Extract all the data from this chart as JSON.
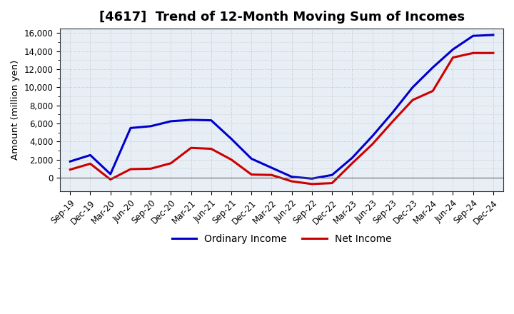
{
  "title": "[4617]  Trend of 12-Month Moving Sum of Incomes",
  "ylabel": "Amount (million yen)",
  "xlabels": [
    "Sep-19",
    "Dec-19",
    "Mar-20",
    "Jun-20",
    "Sep-20",
    "Dec-20",
    "Mar-21",
    "Jun-21",
    "Sep-21",
    "Dec-21",
    "Mar-22",
    "Jun-22",
    "Sep-22",
    "Dec-22",
    "Mar-23",
    "Jun-23",
    "Sep-23",
    "Dec-23",
    "Mar-24",
    "Jun-24",
    "Sep-24",
    "Dec-24"
  ],
  "ordinary_income": [
    1800,
    2500,
    400,
    5500,
    5700,
    6250,
    6400,
    6350,
    4300,
    2100,
    1100,
    100,
    -100,
    300,
    2200,
    4600,
    7200,
    10000,
    12200,
    14200,
    15700,
    15800
  ],
  "net_income": [
    900,
    1550,
    -200,
    950,
    1000,
    1600,
    3300,
    3200,
    2000,
    350,
    300,
    -400,
    -700,
    -600,
    1600,
    3700,
    6200,
    8600,
    9600,
    13300,
    13800,
    13800
  ],
  "ordinary_color": "#0000cc",
  "net_color": "#cc0000",
  "ylim": [
    -1500,
    16500
  ],
  "yticks": [
    0,
    2000,
    4000,
    6000,
    8000,
    10000,
    12000,
    14000,
    16000
  ],
  "background_color": "#ffffff",
  "plot_bg_color": "#e8eef5",
  "grid_color": "#bbbbbb",
  "title_fontsize": 13,
  "axis_fontsize": 9.5,
  "tick_fontsize": 8.5,
  "legend_fontsize": 10,
  "line_width": 2.2
}
